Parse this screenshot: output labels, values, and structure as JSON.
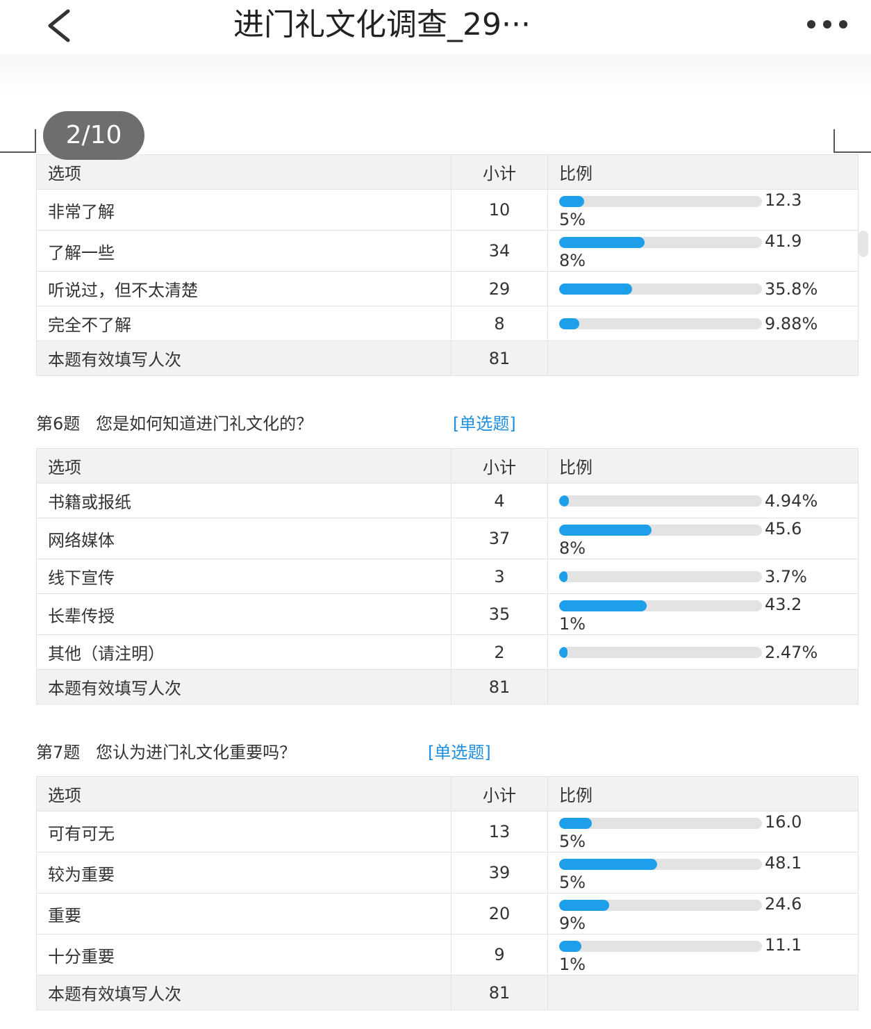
{
  "header": {
    "title": "进门礼文化调查_29···"
  },
  "pager": {
    "label": "2/10"
  },
  "columns": {
    "option": "选项",
    "count": "小计",
    "ratio": "比例"
  },
  "footer_label": "本题有效填写人次",
  "q5": {
    "rows": [
      {
        "option": "非常了解",
        "count": "10",
        "pct_a": "12.3",
        "pct_b": "5%",
        "fraction": 0.1235
      },
      {
        "option": "了解一些",
        "count": "34",
        "pct_a": "41.9",
        "pct_b": "8%",
        "fraction": 0.4198
      },
      {
        "option": "听说过，但不太清楚",
        "count": "29",
        "pct_a": "35.8%",
        "pct_b": "",
        "fraction": 0.358
      },
      {
        "option": "完全不了解",
        "count": "8",
        "pct_a": "9.88%",
        "pct_b": "",
        "fraction": 0.0988
      }
    ],
    "total": "81"
  },
  "q6": {
    "number": "第6题",
    "text": "您是如何知道进门礼文化的？",
    "type": "[单选题]",
    "rows": [
      {
        "option": "书籍或报纸",
        "count": "4",
        "pct_a": "4.94%",
        "pct_b": "",
        "fraction": 0.0494
      },
      {
        "option": "网络媒体",
        "count": "37",
        "pct_a": "45.6",
        "pct_b": "8%",
        "fraction": 0.4568
      },
      {
        "option": "线下宣传",
        "count": "3",
        "pct_a": "3.7%",
        "pct_b": "",
        "fraction": 0.037
      },
      {
        "option": "长辈传授",
        "count": "35",
        "pct_a": "43.2",
        "pct_b": "1%",
        "fraction": 0.4321
      },
      {
        "option": "其他（请注明）",
        "count": "2",
        "pct_a": "2.47%",
        "pct_b": "",
        "fraction": 0.0247
      }
    ],
    "total": "81"
  },
  "q7": {
    "number": "第7题",
    "text": "您认为进门礼文化重要吗？",
    "type": "[单选题]",
    "rows": [
      {
        "option": "可有可无",
        "count": "13",
        "pct_a": "16.0",
        "pct_b": "5%",
        "fraction": 0.1605
      },
      {
        "option": "较为重要",
        "count": "39",
        "pct_a": "48.1",
        "pct_b": "5%",
        "fraction": 0.4815
      },
      {
        "option": "重要",
        "count": "20",
        "pct_a": "24.6",
        "pct_b": "9%",
        "fraction": 0.2469
      },
      {
        "option": "十分重要",
        "count": "9",
        "pct_a": "11.1",
        "pct_b": "1%",
        "fraction": 0.1111
      }
    ],
    "total": "81"
  }
}
